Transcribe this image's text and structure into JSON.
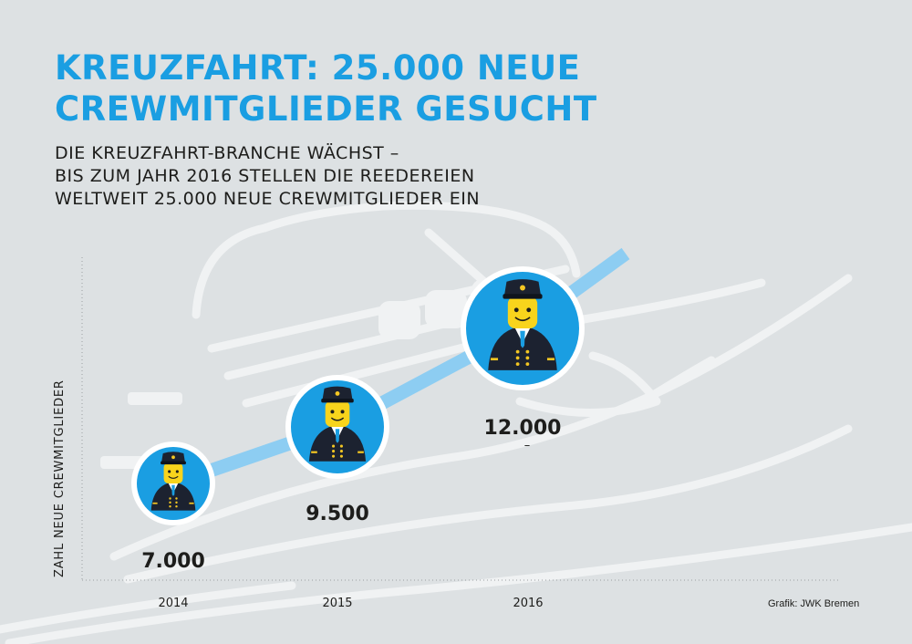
{
  "title_lines": [
    "KREUZFAHRT: 25.000 NEUE",
    "CREWMITGLIEDER GESUCHT"
  ],
  "subtitle_lines": [
    "DIE KREUZFAHRT-BRANCHE WÄCHST –",
    "BIS ZUM JAHR 2016 STELLEN DIE REEDEREIEN",
    "WELTWEIT 25.000 NEUE CREWMITGLIEDER EIN"
  ],
  "credit": "Grafik: JWK Bremen",
  "stray_mark": "–",
  "colors": {
    "accent": "#1a9ee2",
    "trend_line": "#8dcdf2",
    "text": "#1d1d1b",
    "background": "#dde1e3",
    "ship": "#f0f2f3"
  },
  "chart_data": {
    "type": "scatter",
    "ylabel": "ZAHL NEUE CREWMITGLIEDER",
    "x": [
      "2014",
      "2015",
      "2016"
    ],
    "values": [
      7000,
      9500,
      12000
    ],
    "value_labels": [
      "7.000",
      "9.500",
      "12.000"
    ],
    "marker_icon": "captain-figure-icon",
    "trend_arrow": true
  }
}
